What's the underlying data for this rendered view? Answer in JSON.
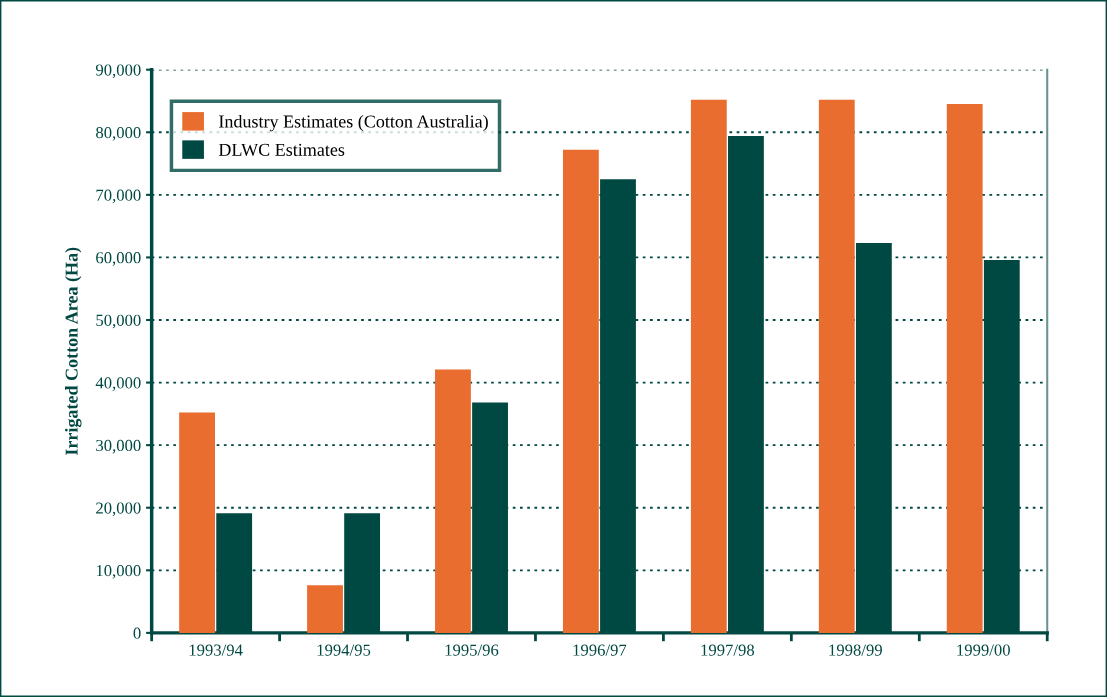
{
  "chart_data": {
    "type": "bar",
    "ylabel": "Irrigated Cotton Area (Ha)",
    "categories": [
      "1993/94",
      "1994/95",
      "1995/96",
      "1996/97",
      "1997/98",
      "1998/99",
      "1999/00"
    ],
    "series": [
      {
        "name": "Industry Estimates (Cotton Australia)",
        "color": "#e86d2f",
        "values": [
          35200,
          7600,
          42100,
          77200,
          85200,
          85200,
          84500
        ]
      },
      {
        "name": "DLWC Estimates",
        "color": "#004842",
        "values": [
          19100,
          19100,
          36800,
          72500,
          79400,
          62300,
          59600
        ]
      }
    ],
    "ylim": [
      0,
      90000
    ],
    "yticks": [
      {
        "value": 0,
        "label": "0"
      },
      {
        "value": 10000,
        "label": "10,000"
      },
      {
        "value": 20000,
        "label": "20,000"
      },
      {
        "value": 30000,
        "label": "30,000"
      },
      {
        "value": 40000,
        "label": "40,000"
      },
      {
        "value": 50000,
        "label": "50,000"
      },
      {
        "value": 60000,
        "label": "60,000"
      },
      {
        "value": 70000,
        "label": "70,000"
      },
      {
        "value": 80000,
        "label": "80,000"
      },
      {
        "value": 90000,
        "label": "90,000"
      }
    ],
    "grid": "y",
    "legend": "top left"
  }
}
